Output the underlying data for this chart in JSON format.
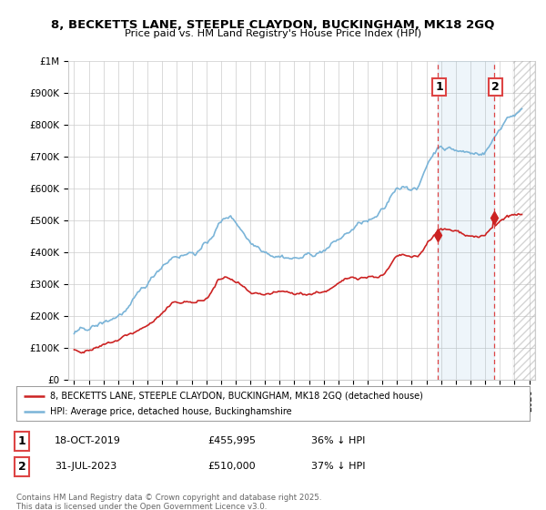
{
  "title_line1": "8, BECKETTS LANE, STEEPLE CLAYDON, BUCKINGHAM, MK18 2GQ",
  "title_line2": "Price paid vs. HM Land Registry's House Price Index (HPI)",
  "ylim": [
    0,
    1000000
  ],
  "yticks": [
    0,
    100000,
    200000,
    300000,
    400000,
    500000,
    600000,
    700000,
    800000,
    900000,
    1000000
  ],
  "ytick_labels": [
    "£0",
    "£100K",
    "£200K",
    "£300K",
    "£400K",
    "£500K",
    "£600K",
    "£700K",
    "£800K",
    "£900K",
    "£1M"
  ],
  "xlim_start": 1994.6,
  "xlim_end": 2026.4,
  "hpi_color": "#7ab4d8",
  "price_color": "#cc2222",
  "vline_color": "#dd4444",
  "marker1_x": 2019.79,
  "marker1_y": 455995,
  "marker1_label": "1",
  "marker1_date": "18-OCT-2019",
  "marker1_price": "£455,995",
  "marker1_hpi": "36% ↓ HPI",
  "marker2_x": 2023.58,
  "marker2_y": 510000,
  "marker2_label": "2",
  "marker2_date": "31-JUL-2023",
  "marker2_price": "£510,000",
  "marker2_hpi": "37% ↓ HPI",
  "legend_line1": "8, BECKETTS LANE, STEEPLE CLAYDON, BUCKINGHAM, MK18 2GQ (detached house)",
  "legend_line2": "HPI: Average price, detached house, Buckinghamshire",
  "footer": "Contains HM Land Registry data © Crown copyright and database right 2025.\nThis data is licensed under the Open Government Licence v3.0.",
  "background_color": "#ffffff",
  "grid_color": "#cccccc"
}
